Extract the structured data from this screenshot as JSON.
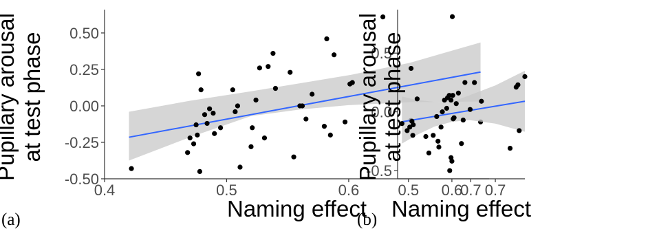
{
  "panels": [
    {
      "id": "a",
      "label": "(a)",
      "ylabel_lines": [
        "Pupillary arousal",
        "at test phase"
      ],
      "xlabel": "Naming effect",
      "xlim": [
        0.4,
        0.715
      ],
      "ylim": [
        -0.5,
        0.66
      ],
      "xticks": [
        {
          "v": 0.4,
          "t": "0.4"
        },
        {
          "v": 0.5,
          "t": "0.5"
        },
        {
          "v": 0.6,
          "t": "0.6"
        },
        {
          "v": 0.7,
          "t": "0.7"
        }
      ],
      "yticks": [
        {
          "v": 0.5,
          "t": "0.50"
        },
        {
          "v": 0.25,
          "t": "0.25"
        },
        {
          "v": 0.0,
          "t": "0.00"
        },
        {
          "v": -0.25,
          "t": "-0.25"
        },
        {
          "v": -0.5,
          "t": "-0.50"
        }
      ],
      "fit_line": {
        "x": [
          0.42,
          0.708
        ],
        "y": [
          -0.215,
          0.232
        ]
      },
      "ci_band": {
        "x": [
          0.42,
          0.47,
          0.52,
          0.56,
          0.6,
          0.65,
          0.708
        ],
        "upper": [
          -0.04,
          0.035,
          0.1,
          0.155,
          0.21,
          0.295,
          0.435
        ],
        "lower": [
          -0.375,
          -0.215,
          -0.07,
          -0.025,
          0.005,
          0.025,
          0.03
        ]
      },
      "points": [
        [
          0.422,
          -0.43
        ],
        [
          0.468,
          -0.32
        ],
        [
          0.47,
          -0.22
        ],
        [
          0.473,
          -0.26
        ],
        [
          0.475,
          -0.13
        ],
        [
          0.476,
          -0.2
        ],
        [
          0.477,
          0.22
        ],
        [
          0.478,
          -0.45
        ],
        [
          0.479,
          0.11
        ],
        [
          0.482,
          -0.06
        ],
        [
          0.484,
          -0.12
        ],
        [
          0.486,
          -0.02
        ],
        [
          0.489,
          -0.05
        ],
        [
          0.49,
          -0.19
        ],
        [
          0.495,
          -0.15
        ],
        [
          0.505,
          0.11
        ],
        [
          0.507,
          -0.04
        ],
        [
          0.509,
          0.0
        ],
        [
          0.511,
          -0.42
        ],
        [
          0.52,
          -0.28
        ],
        [
          0.521,
          -0.15
        ],
        [
          0.524,
          0.04
        ],
        [
          0.527,
          0.26
        ],
        [
          0.531,
          -0.22
        ],
        [
          0.534,
          0.27
        ],
        [
          0.538,
          0.36
        ],
        [
          0.54,
          0.12
        ],
        [
          0.552,
          0.23
        ],
        [
          0.555,
          -0.35
        ],
        [
          0.56,
          0.0
        ],
        [
          0.562,
          0.0
        ],
        [
          0.565,
          -0.09
        ],
        [
          0.57,
          0.08
        ],
        [
          0.58,
          -0.14
        ],
        [
          0.582,
          0.46
        ],
        [
          0.585,
          -0.2
        ],
        [
          0.588,
          0.35
        ],
        [
          0.597,
          -0.11
        ],
        [
          0.601,
          0.15
        ],
        [
          0.603,
          0.16
        ],
        [
          0.628,
          0.61
        ],
        [
          0.651,
          -0.1
        ],
        [
          0.703,
          0.16
        ],
        [
          0.708,
          -0.11
        ]
      ]
    },
    {
      "id": "b",
      "label": "(b)",
      "ylabel_lines": [
        "Pupillary arousal",
        "at test phase"
      ],
      "xlabel": "Naming effect",
      "xlim": [
        0.475,
        0.768
      ],
      "ylim": [
        -0.57,
        0.87
      ],
      "xticks": [
        {
          "v": 0.5,
          "t": "0.5"
        },
        {
          "v": 0.6,
          "t": "0.6"
        },
        {
          "v": 0.7,
          "t": "0.7"
        }
      ],
      "yticks": [
        {
          "v": 0.5,
          "t": "0.5"
        },
        {
          "v": 0.0,
          "t": "0.0"
        },
        {
          "v": -0.5,
          "t": "-0.5"
        }
      ],
      "fit_line": {
        "x": [
          0.485,
          0.768
        ],
        "y": [
          -0.085,
          0.09
        ]
      },
      "ci_band": {
        "x": [
          0.485,
          0.52,
          0.56,
          0.6,
          0.64,
          0.7,
          0.768
        ],
        "upper": [
          0.13,
          0.1,
          0.085,
          0.085,
          0.14,
          0.225,
          0.35
        ],
        "lower": [
          -0.27,
          -0.195,
          -0.125,
          -0.085,
          -0.07,
          -0.1,
          -0.17
        ]
      },
      "points": [
        [
          0.485,
          -0.1
        ],
        [
          0.497,
          -0.16
        ],
        [
          0.503,
          -0.13
        ],
        [
          0.506,
          0.37
        ],
        [
          0.508,
          -0.08
        ],
        [
          0.51,
          -0.2
        ],
        [
          0.511,
          -0.11
        ],
        [
          0.52,
          0.11
        ],
        [
          0.54,
          -0.21
        ],
        [
          0.547,
          -0.35
        ],
        [
          0.557,
          -0.2
        ],
        [
          0.565,
          -0.04
        ],
        [
          0.568,
          -0.25
        ],
        [
          0.57,
          -0.3
        ],
        [
          0.575,
          -0.13
        ],
        [
          0.578,
          0.0
        ],
        [
          0.583,
          0.1
        ],
        [
          0.588,
          0.03
        ],
        [
          0.59,
          0.12
        ],
        [
          0.594,
          0.14
        ],
        [
          0.595,
          -0.5
        ],
        [
          0.598,
          0.1
        ],
        [
          0.598,
          -0.39
        ],
        [
          0.6,
          -0.42
        ],
        [
          0.601,
          0.81
        ],
        [
          0.602,
          0.14
        ],
        [
          0.603,
          -0.06
        ],
        [
          0.605,
          -0.05
        ],
        [
          0.61,
          0.07
        ],
        [
          0.615,
          0.16
        ],
        [
          0.622,
          -0.27
        ],
        [
          0.626,
          -0.07
        ],
        [
          0.63,
          0.25
        ],
        [
          0.642,
          0.02
        ],
        [
          0.668,
          0.09
        ],
        [
          0.734,
          -0.31
        ],
        [
          0.748,
          0.21
        ],
        [
          0.752,
          0.23
        ],
        [
          0.755,
          -0.16
        ],
        [
          0.768,
          0.3
        ]
      ]
    }
  ]
}
